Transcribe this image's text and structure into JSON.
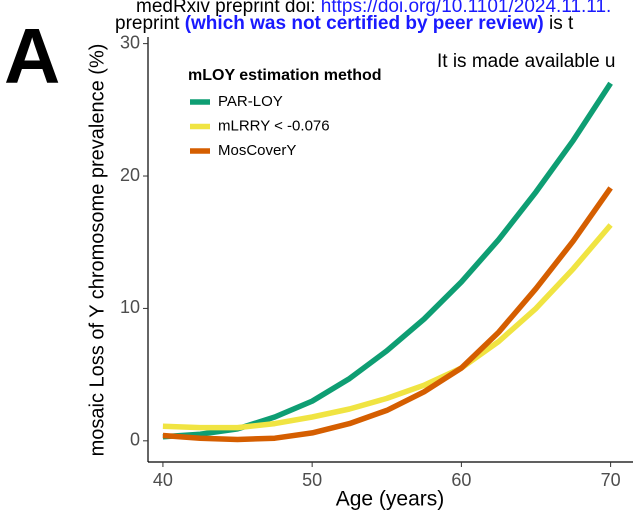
{
  "chart_data": {
    "type": "line",
    "panel_label": "A",
    "header_lines": [
      [
        {
          "text": "medRxiv preprint doi: ",
          "style": "plain"
        },
        {
          "text": "https://doi.org/10.1101/2024.11.11.",
          "style": "link"
        }
      ],
      [
        {
          "text": "preprint ",
          "style": "plain"
        },
        {
          "text": "(which was not certified by peer review)",
          "style": "bold-link"
        },
        {
          "text": " is t",
          "style": "plain"
        }
      ]
    ],
    "annotation": "It is made available u",
    "x_label": "Age (years)",
    "y_label": "mosaic Loss of Y chromosome prevalence (%)",
    "legend_title": "mLOY estimation method",
    "x": [
      40,
      42.5,
      45,
      47.5,
      50,
      52.5,
      55,
      57.5,
      60,
      62.5,
      65,
      67.5,
      70
    ],
    "series": [
      {
        "name": "PAR-LOY",
        "color": "#0e9e73",
        "values": [
          0.3,
          0.5,
          0.9,
          1.8,
          3.0,
          4.7,
          6.8,
          9.2,
          12.0,
          15.2,
          18.8,
          22.7,
          27.0
        ]
      },
      {
        "name": "mLRRY < -0.076",
        "color": "#f0e442",
        "values": [
          1.1,
          1.0,
          1.0,
          1.3,
          1.8,
          2.4,
          3.2,
          4.2,
          5.5,
          7.5,
          10.0,
          13.0,
          16.3
        ]
      },
      {
        "name": "MosCoverY",
        "color": "#d55e00",
        "values": [
          0.4,
          0.2,
          0.1,
          0.2,
          0.6,
          1.3,
          2.3,
          3.7,
          5.5,
          8.2,
          11.5,
          15.1,
          19.1
        ]
      }
    ],
    "xlim": [
      39,
      71.5
    ],
    "ylim": [
      -1.6,
      30.5
    ],
    "xticks": [
      40,
      50,
      60,
      70
    ],
    "yticks": [
      0,
      10,
      20,
      30
    ],
    "grid": false
  }
}
